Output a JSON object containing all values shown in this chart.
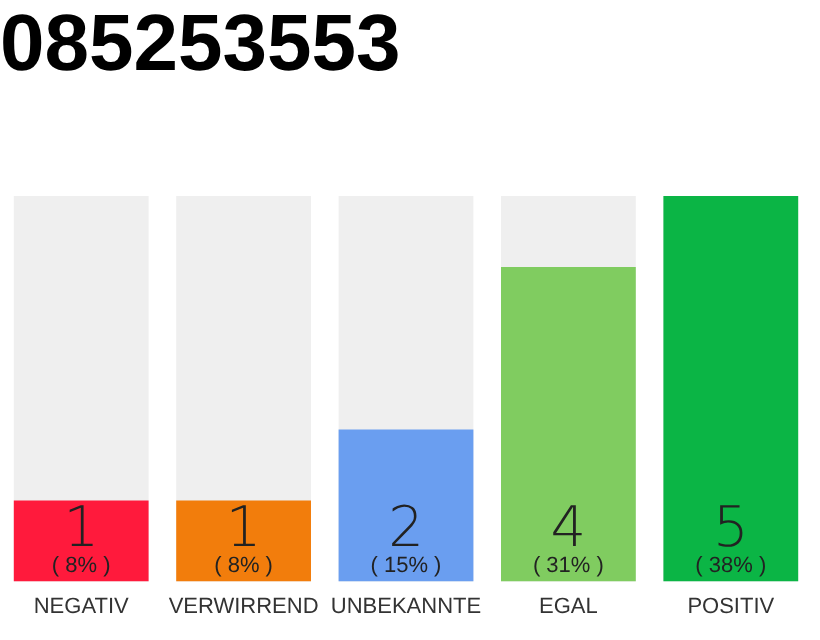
{
  "chart_data": {
    "type": "bar",
    "title": "085253553",
    "categories": [
      "NEGATIV",
      "VERWIRREND",
      "UNBEKANNTE",
      "EGAL",
      "POSITIV"
    ],
    "values": [
      8,
      8,
      15,
      31,
      38
    ],
    "colors": [
      "#ff1a3c",
      "#f27d0c",
      "#6a9ef0",
      "#80cc60",
      "#0bb545"
    ],
    "value_labels": [
      "( 8% )",
      "( 8% )",
      "( 15% )",
      "( 31% )",
      "( 38% )"
    ],
    "annotations": [
      "1",
      "1",
      "2",
      "4",
      "5"
    ],
    "grid": false,
    "legend": false
  }
}
